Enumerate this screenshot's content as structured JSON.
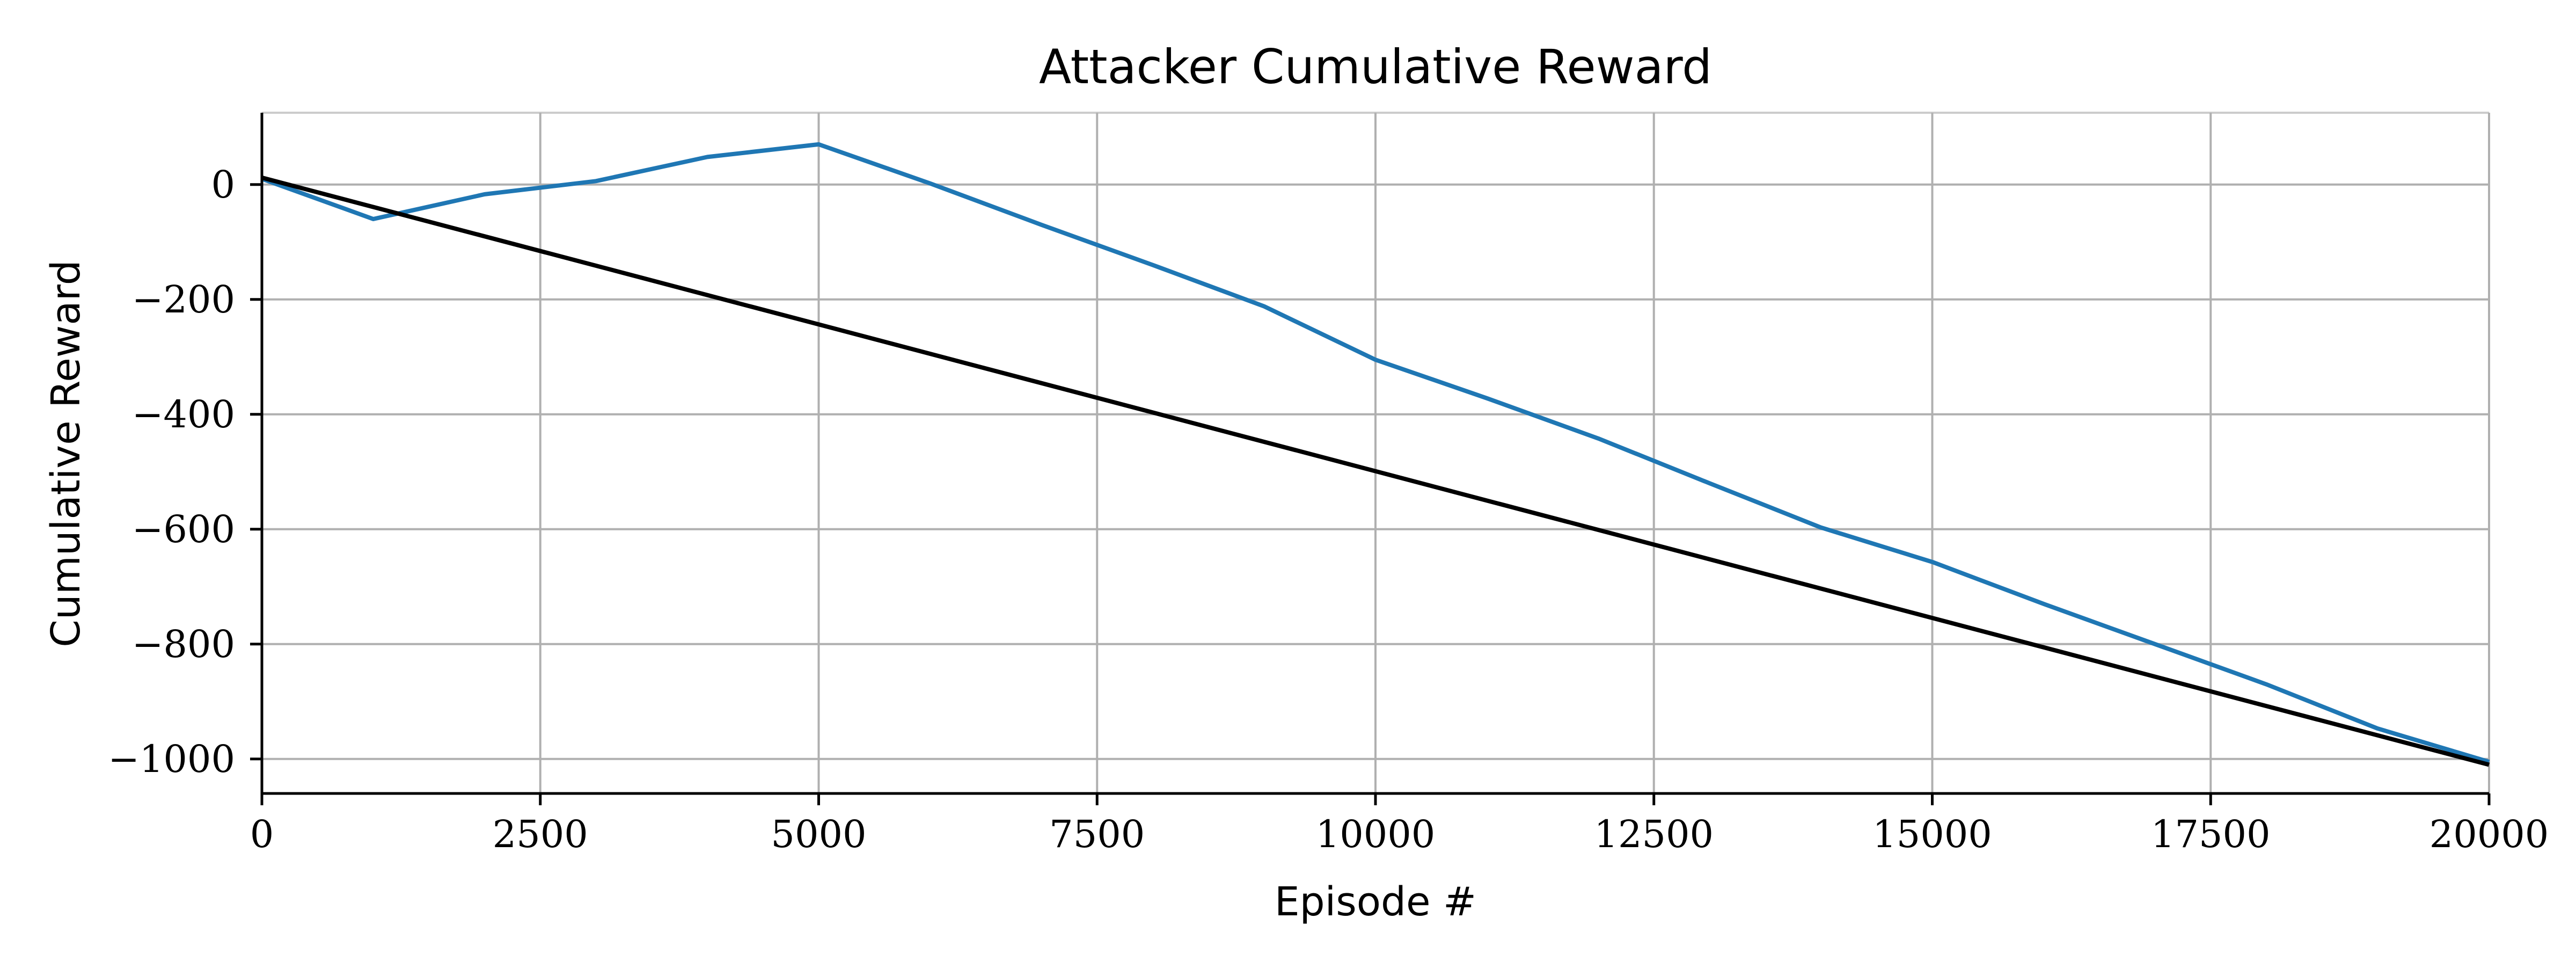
{
  "chart_data": {
    "type": "line",
    "title": "Attacker Cumulative Reward",
    "xlabel": "Episode #",
    "ylabel": "Cumulative Reward",
    "xlim": [
      0,
      20000
    ],
    "ylim": [
      -1060,
      125
    ],
    "xticks": [
      0,
      2500,
      5000,
      7500,
      10000,
      12500,
      15000,
      17500,
      20000
    ],
    "yticks": [
      0,
      -200,
      -400,
      -600,
      -800,
      -1000
    ],
    "xtick_labels": [
      "0",
      "2500",
      "5000",
      "7500",
      "10000",
      "12500",
      "15000",
      "17500",
      "20000"
    ],
    "ytick_labels": [
      "0",
      "−200",
      "−400",
      "−600",
      "−800",
      "−1000"
    ],
    "grid": true,
    "series": [
      {
        "color": "#1f77b4",
        "x": [
          0,
          1000,
          2000,
          3000,
          4000,
          5000,
          6000,
          7000,
          8000,
          9000,
          10000,
          11000,
          12000,
          13000,
          14000,
          15000,
          16000,
          17000,
          18000,
          19000,
          20000
        ],
        "y": [
          10,
          -60,
          -17,
          6,
          48,
          70,
          2,
          -70,
          -140,
          -212,
          -305,
          -372,
          -442,
          -520,
          -597,
          -657,
          -730,
          -800,
          -870,
          -947,
          -1005
        ]
      },
      {
        "color": "#000000",
        "x": [
          0,
          20000
        ],
        "y": [
          12,
          -1010
        ]
      }
    ]
  }
}
